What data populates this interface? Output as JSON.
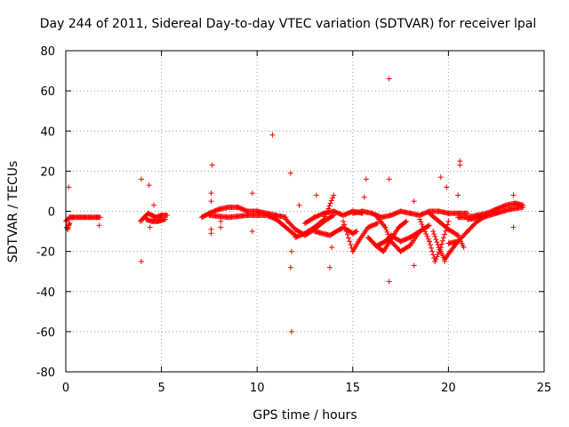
{
  "chart_data": {
    "type": "scatter",
    "title": "Day 244 of 2011, Sidereal Day-to-day VTEC variation (SDTVAR) for receiver lpal",
    "xlabel": "GPS time / hours",
    "ylabel": "SDTVAR / TECUs",
    "xlim": [
      0,
      25
    ],
    "ylim": [
      -80,
      80
    ],
    "x_ticks": [
      0,
      5,
      10,
      15,
      20,
      25
    ],
    "y_ticks": [
      -80,
      -60,
      -40,
      -20,
      0,
      20,
      40,
      60,
      80
    ],
    "grid": true,
    "marker": "+",
    "series_color": "#ff0000",
    "series": [
      {
        "name": "SDTVAR",
        "dense_tracks": [
          {
            "x": [
              0.0,
              0.2,
              0.4,
              0.8,
              1.2,
              1.6,
              1.8
            ],
            "y": [
              -5,
              -3,
              -3,
              -3,
              -3,
              -3,
              -3
            ]
          },
          {
            "x": [
              0.05,
              0.1,
              0.15,
              0.2
            ],
            "y": [
              -8,
              -9,
              -7,
              -6
            ]
          },
          {
            "x": [
              3.9,
              4.1,
              4.3,
              4.5,
              4.7,
              5.0,
              5.3
            ],
            "y": [
              -5,
              -3,
              -1,
              -2,
              -3,
              -2,
              -2
            ]
          },
          {
            "x": [
              4.2,
              4.5,
              4.8,
              5.2
            ],
            "y": [
              -4,
              -5,
              -5,
              -4
            ]
          },
          {
            "x": [
              7.1,
              7.5,
              8.0,
              8.5,
              9.0,
              9.5,
              10.0,
              10.5,
              11.0,
              11.5
            ],
            "y": [
              -3,
              -1,
              1,
              2,
              2,
              0,
              0,
              -1,
              -2,
              -3
            ]
          },
          {
            "x": [
              7.5,
              8.5,
              9.5,
              10.5,
              11.0,
              11.5,
              12.0
            ],
            "y": [
              -2,
              -3,
              -2,
              -2,
              -4,
              -8,
              -12
            ]
          },
          {
            "x": [
              11.5,
              12.0,
              12.5,
              13.0,
              13.5,
              14.0
            ],
            "y": [
              -4,
              -9,
              -12,
              -9,
              -5,
              -2
            ]
          },
          {
            "x": [
              12.0,
              12.5,
              13.0,
              13.5,
              14.0
            ],
            "y": [
              -13,
              -11,
              -8,
              -4,
              8
            ]
          },
          {
            "x": [
              12.5,
              13.0,
              13.5,
              14.0,
              14.5,
              15.0,
              15.5
            ],
            "y": [
              -6,
              -3,
              -1,
              0,
              -2,
              0,
              -1
            ]
          },
          {
            "x": [
              13.0,
              13.8,
              14.5,
              15.0,
              15.2
            ],
            "y": [
              -10,
              -12,
              -8,
              -11,
              -10
            ]
          },
          {
            "x": [
              14.5,
              15.0,
              15.3,
              15.8,
              16.3
            ],
            "y": [
              -5,
              -20,
              -15,
              -8,
              -6
            ]
          },
          {
            "x": [
              15.0,
              15.5,
              16.0,
              16.5,
              17.0,
              17.5,
              18.0,
              18.5,
              19.0,
              19.5,
              20.0,
              20.5,
              21.0
            ],
            "y": [
              -1,
              0,
              -1,
              -3,
              -2,
              0,
              -1,
              -2,
              0,
              0,
              -1,
              -1,
              -1
            ]
          },
          {
            "x": [
              15.8,
              16.2,
              16.6,
              17.0,
              17.4,
              17.8
            ],
            "y": [
              -13,
              -17,
              -20,
              -14,
              -8,
              -5
            ]
          },
          {
            "x": [
              16.3,
              16.7,
              17.0
            ],
            "y": [
              -17,
              -15,
              -12
            ]
          },
          {
            "x": [
              16.2,
              16.7,
              17.0,
              17.5,
              18.0,
              18.5
            ],
            "y": [
              -2,
              -8,
              -15,
              -20,
              -17,
              -10
            ]
          },
          {
            "x": [
              17.0,
              17.5,
              18.0,
              18.5,
              19.0
            ],
            "y": [
              -12,
              -15,
              -13,
              -10,
              -7
            ]
          },
          {
            "x": [
              18.5,
              19.0,
              19.3,
              19.6,
              20.0
            ],
            "y": [
              -4,
              -15,
              -25,
              -18,
              -5
            ]
          },
          {
            "x": [
              19.2,
              19.5,
              19.8,
              20.1,
              20.5
            ],
            "y": [
              -10,
              -18,
              -24,
              -20,
              -15
            ]
          },
          {
            "x": [
              19.0,
              19.5,
              20.0,
              20.5,
              20.8
            ],
            "y": [
              -1,
              -5,
              -9,
              -12,
              -18
            ]
          },
          {
            "x": [
              20.0,
              20.5,
              21.0,
              21.5,
              22.0
            ],
            "y": [
              -16,
              -15,
              -10,
              -5,
              -2
            ]
          },
          {
            "x": [
              20.5,
              21.0,
              21.5,
              22.0,
              22.5,
              23.0,
              23.5,
              23.9
            ],
            "y": [
              -3,
              -3,
              -2,
              -1,
              1,
              3,
              4,
              3
            ]
          },
          {
            "x": [
              21.0,
              21.8,
              22.5,
              23.2,
              23.9
            ],
            "y": [
              -4,
              -3,
              -1,
              1,
              2
            ]
          }
        ],
        "outliers": [
          {
            "x": 0.15,
            "y": 12
          },
          {
            "x": 1.75,
            "y": -7
          },
          {
            "x": 3.95,
            "y": 16
          },
          {
            "x": 3.95,
            "y": -25
          },
          {
            "x": 4.35,
            "y": 13
          },
          {
            "x": 4.4,
            "y": -8
          },
          {
            "x": 4.6,
            "y": 3
          },
          {
            "x": 7.65,
            "y": 23
          },
          {
            "x": 7.6,
            "y": 9
          },
          {
            "x": 7.6,
            "y": 5
          },
          {
            "x": 7.6,
            "y": -9
          },
          {
            "x": 7.6,
            "y": -11
          },
          {
            "x": 8.1,
            "y": -8
          },
          {
            "x": 8.1,
            "y": -5
          },
          {
            "x": 9.75,
            "y": 9
          },
          {
            "x": 9.75,
            "y": -10
          },
          {
            "x": 10.8,
            "y": 38
          },
          {
            "x": 11.75,
            "y": 19
          },
          {
            "x": 11.75,
            "y": -28
          },
          {
            "x": 11.8,
            "y": -20
          },
          {
            "x": 11.8,
            "y": -60
          },
          {
            "x": 12.2,
            "y": 3
          },
          {
            "x": 13.1,
            "y": 8
          },
          {
            "x": 13.8,
            "y": -28
          },
          {
            "x": 13.9,
            "y": -18
          },
          {
            "x": 14.4,
            "y": -9
          },
          {
            "x": 15.7,
            "y": 16
          },
          {
            "x": 15.6,
            "y": 7
          },
          {
            "x": 16.9,
            "y": 66
          },
          {
            "x": 16.9,
            "y": 16
          },
          {
            "x": 16.9,
            "y": -35
          },
          {
            "x": 18.2,
            "y": 5
          },
          {
            "x": 18.2,
            "y": -27
          },
          {
            "x": 19.6,
            "y": 17
          },
          {
            "x": 19.9,
            "y": 12
          },
          {
            "x": 19.8,
            "y": -25
          },
          {
            "x": 20.6,
            "y": 25
          },
          {
            "x": 20.6,
            "y": 23
          },
          {
            "x": 20.5,
            "y": 8
          },
          {
            "x": 23.4,
            "y": 8
          },
          {
            "x": 23.4,
            "y": -8
          }
        ]
      }
    ]
  }
}
